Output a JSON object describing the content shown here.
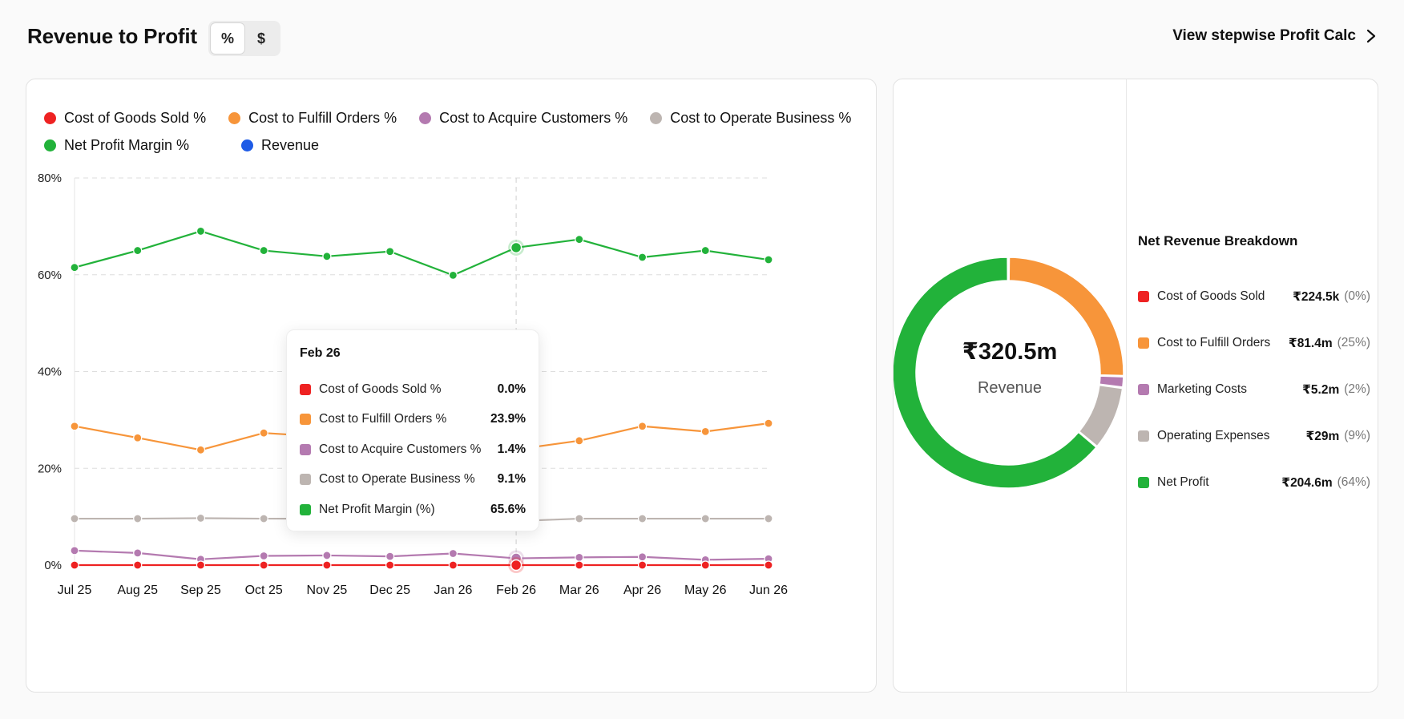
{
  "header": {
    "title": "Revenue to Profit",
    "toggle_options": [
      "%",
      "$"
    ],
    "toggle_selected": "%",
    "stepwise_link": "View stepwise Profit Calc"
  },
  "chart_data": [
    {
      "type": "line",
      "categories": [
        "Jul 25",
        "Aug 25",
        "Sep 25",
        "Oct 25",
        "Nov 25",
        "Dec 25",
        "Jan 26",
        "Feb 26",
        "Mar 26",
        "Apr 26",
        "May 26",
        "Jun 26"
      ],
      "yticks": [
        "0%",
        "20%",
        "40%",
        "60%",
        "80%"
      ],
      "ylim": [
        0,
        80
      ],
      "grid": true,
      "legend_position": "top-left",
      "legend": [
        {
          "name": "Cost of Goods Sold %",
          "color": "#ee2222"
        },
        {
          "name": "Cost to Fulfill Orders %",
          "color": "#f7953a"
        },
        {
          "name": "Cost to Acquire Customers %",
          "color": "#b47ab0"
        },
        {
          "name": "Cost to Operate Business %",
          "color": "#bdb5b1"
        },
        {
          "name": "Net Profit Margin %",
          "color": "#22b23a"
        },
        {
          "name": "Revenue",
          "color": "#1e5be6"
        }
      ],
      "series": [
        {
          "name": "Cost of Goods Sold %",
          "color": "#ee2222",
          "values": [
            0,
            0,
            0,
            0,
            0,
            0,
            0,
            0,
            0,
            0,
            0,
            0
          ]
        },
        {
          "name": "Cost to Fulfill Orders %",
          "color": "#f7953a",
          "values": [
            28.7,
            26.3,
            23.8,
            27.3,
            26.5,
            26.8,
            26.7,
            23.9,
            25.7,
            28.7,
            27.6,
            29.3
          ]
        },
        {
          "name": "Cost to Acquire Customers %",
          "color": "#b47ab0",
          "values": [
            3.0,
            2.5,
            1.2,
            1.9,
            2.0,
            1.8,
            2.4,
            1.4,
            1.6,
            1.7,
            1.1,
            1.3
          ]
        },
        {
          "name": "Cost to Operate Business %",
          "color": "#bdb5b1",
          "values": [
            9.6,
            9.6,
            9.7,
            9.6,
            9.6,
            9.6,
            9.7,
            9.1,
            9.6,
            9.6,
            9.6,
            9.6
          ]
        },
        {
          "name": "Net Profit Margin %",
          "color": "#22b23a",
          "values": [
            61.5,
            65.0,
            69.0,
            65.0,
            63.8,
            64.8,
            59.9,
            65.6,
            67.3,
            63.6,
            65.0,
            63.1
          ]
        }
      ],
      "highlight_category": "Feb 26",
      "tooltip": {
        "title": "Feb 26",
        "rows": [
          {
            "label": "Cost of Goods Sold %",
            "value": "0.0%",
            "color": "#ee2222"
          },
          {
            "label": "Cost to Fulfill Orders %",
            "value": "23.9%",
            "color": "#f7953a"
          },
          {
            "label": "Cost to Acquire Customers %",
            "value": "1.4%",
            "color": "#b47ab0"
          },
          {
            "label": "Cost to Operate Business %",
            "value": "9.1%",
            "color": "#bdb5b1"
          },
          {
            "label": "Net Profit Margin (%)",
            "value": "65.6%",
            "color": "#22b23a"
          }
        ]
      }
    },
    {
      "type": "pie",
      "center_value": "₹320.5m",
      "center_label": "Revenue",
      "title": "Net Revenue Breakdown",
      "slices": [
        {
          "label": "Cost of Goods Sold",
          "amount": "₹224.5k",
          "percent_text": "(0%)",
          "value": 0.07,
          "color": "#ee2222"
        },
        {
          "label": "Cost to Fulfill Orders",
          "amount": "₹81.4m",
          "percent_text": "(25%)",
          "value": 25.4,
          "color": "#f7953a"
        },
        {
          "label": "Marketing Costs",
          "amount": "₹5.2m",
          "percent_text": "(2%)",
          "value": 1.6,
          "color": "#b47ab0"
        },
        {
          "label": "Operating Expenses",
          "amount": "₹29m",
          "percent_text": "(9%)",
          "value": 9.0,
          "color": "#bdb5b1"
        },
        {
          "label": "Net Profit",
          "amount": "₹204.6m",
          "percent_text": "(64%)",
          "value": 63.9,
          "color": "#22b23a"
        }
      ]
    }
  ]
}
